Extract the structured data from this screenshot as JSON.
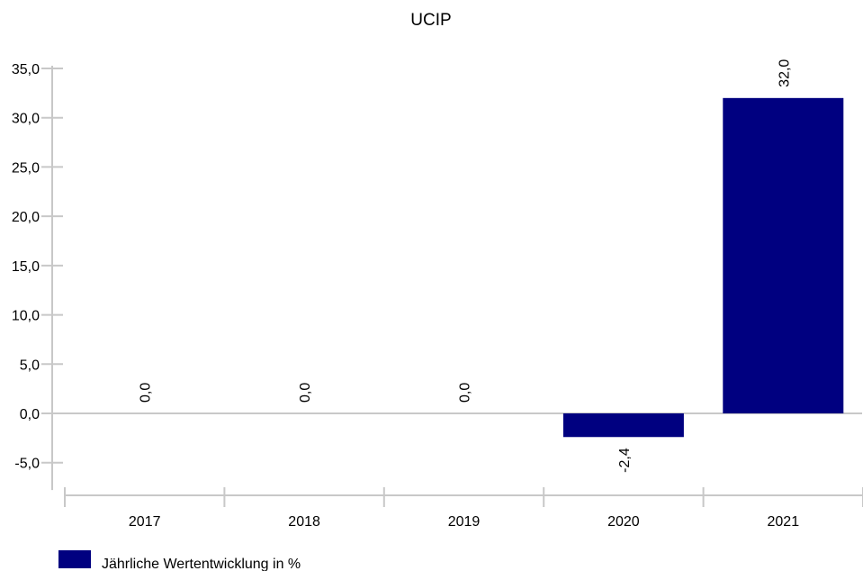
{
  "chart_data": {
    "type": "bar",
    "title": "UCIP",
    "xlabel": "",
    "ylabel": "",
    "categories": [
      "2017",
      "2018",
      "2019",
      "2020",
      "2021"
    ],
    "series": [
      {
        "name": "Jährliche Wertentwicklung in %",
        "values": [
          0.0,
          0.0,
          0.0,
          -2.4,
          32.0
        ],
        "labels": [
          "0,0",
          "0,0",
          "0,0",
          "-2,4",
          "32,0"
        ]
      }
    ],
    "ylim": [
      -7.5,
      35.0
    ],
    "yticks": [
      35.0,
      30.0,
      25.0,
      20.0,
      15.0,
      10.0,
      5.0,
      0.0,
      -5.0
    ],
    "ytick_labels": [
      "35,0",
      "30,0",
      "25,0",
      "20,0",
      "15,0",
      "10,0",
      "5,0",
      "0,0",
      "-5,0"
    ],
    "grid": false,
    "legend_position": "bottom-left",
    "colors": {
      "bar": "#000080",
      "axis": "#c8c8c8",
      "text": "#000000"
    }
  }
}
